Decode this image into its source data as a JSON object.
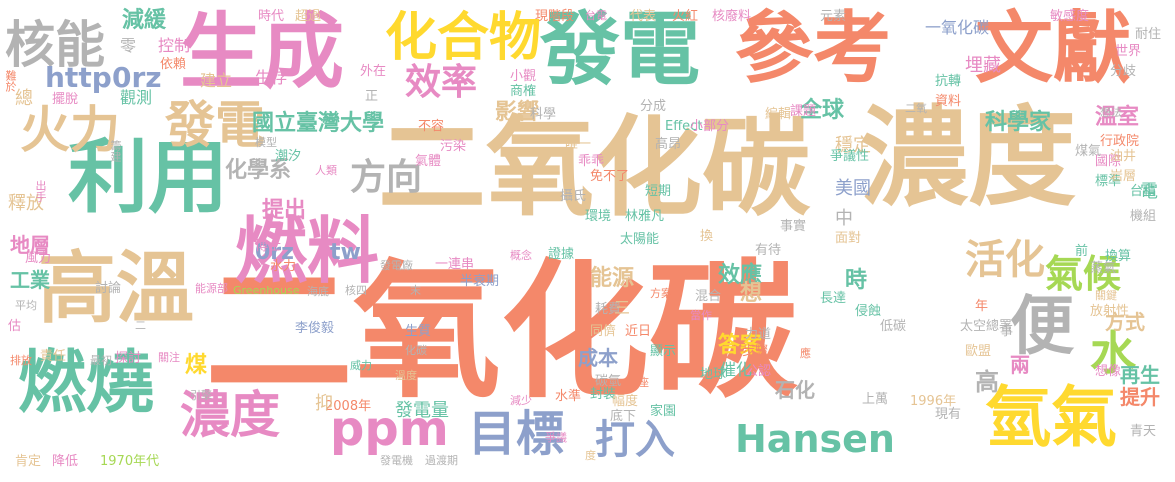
{
  "palette": {
    "orange": "#f4886a",
    "teal": "#66c2a5",
    "purple": "#e78ac3",
    "green": "#a6d854",
    "tan": "#e5c494",
    "yellow": "#ffd92f",
    "gray": "#b3b3b3",
    "blue": "#8da0cb"
  },
  "words": [
    {
      "text": "二氧化碳",
      "color": "orange"
    },
    {
      "text": "二氧化碳",
      "color": "tan"
    },
    {
      "text": "濃度",
      "color": "tan"
    },
    {
      "text": "發電",
      "color": "teal"
    },
    {
      "text": "參考",
      "color": "orange"
    },
    {
      "text": "文獻",
      "color": "orange"
    },
    {
      "text": "生成",
      "color": "purple"
    },
    {
      "text": "利用",
      "color": "teal"
    },
    {
      "text": "高溫",
      "color": "tan"
    },
    {
      "text": "燃料",
      "color": "purple"
    },
    {
      "text": "燃燒",
      "color": "teal"
    },
    {
      "text": "氫氣",
      "color": "yellow"
    },
    {
      "text": "化合物",
      "color": "yellow"
    },
    {
      "text": "核能",
      "color": "gray"
    },
    {
      "text": "火力",
      "color": "tan"
    },
    {
      "text": "發電",
      "color": "tan"
    },
    {
      "text": "效率",
      "color": "purple"
    },
    {
      "text": "方向",
      "color": "gray"
    },
    {
      "text": "便",
      "color": "gray"
    },
    {
      "text": "濃度",
      "color": "purple"
    },
    {
      "text": "ppm",
      "color": "purple"
    },
    {
      "text": "目標",
      "color": "blue"
    },
    {
      "text": "打入",
      "color": "blue"
    },
    {
      "text": "Hansen",
      "color": "teal"
    },
    {
      "text": "氣候",
      "color": "green"
    },
    {
      "text": "活化",
      "color": "tan"
    },
    {
      "text": "水",
      "color": "green"
    },
    {
      "text": "http",
      "color": "blue"
    },
    {
      "text": "0rz",
      "color": "blue"
    },
    {
      "text": "0rz",
      "color": "blue"
    },
    {
      "text": "tw",
      "color": "blue"
    },
    {
      "text": "減緩",
      "color": "teal"
    },
    {
      "text": "國立臺灣大學",
      "color": "teal"
    },
    {
      "text": "化學系",
      "color": "gray"
    },
    {
      "text": "提出",
      "color": "purple"
    },
    {
      "text": "影響",
      "color": "tan"
    },
    {
      "text": "全球",
      "color": "teal"
    },
    {
      "text": "科學家",
      "color": "teal"
    },
    {
      "text": "溫室",
      "color": "purple"
    },
    {
      "text": "效應",
      "color": "teal"
    },
    {
      "text": "能源",
      "color": "tan"
    },
    {
      "text": "答案",
      "color": "yellow"
    },
    {
      "text": "成本",
      "color": "blue"
    },
    {
      "text": "石化",
      "color": "gray"
    },
    {
      "text": "再生",
      "color": "teal"
    },
    {
      "text": "提升",
      "color": "orange"
    },
    {
      "text": "美國",
      "color": "blue"
    },
    {
      "text": "穩定",
      "color": "tan"
    },
    {
      "text": "埋藏",
      "color": "purple"
    },
    {
      "text": "一氧化碳",
      "color": "blue"
    },
    {
      "text": "工業",
      "color": "teal"
    },
    {
      "text": "地層",
      "color": "purple"
    },
    {
      "text": "釋放",
      "color": "tan"
    },
    {
      "text": "總",
      "color": "tan"
    },
    {
      "text": "零",
      "color": "gray"
    },
    {
      "text": "控制",
      "color": "purple"
    },
    {
      "text": "生存",
      "color": "purple"
    },
    {
      "text": "建立",
      "color": "tan"
    },
    {
      "text": "觀測",
      "color": "teal"
    },
    {
      "text": "擺脫",
      "color": "purple"
    },
    {
      "text": "依賴",
      "color": "orange"
    },
    {
      "text": "時代",
      "color": "purple"
    },
    {
      "text": "超過",
      "color": "tan"
    },
    {
      "text": "現階段",
      "color": "orange"
    },
    {
      "text": "台電",
      "color": "purple"
    },
    {
      "text": "代表",
      "color": "tan"
    },
    {
      "text": "火紅",
      "color": "orange"
    },
    {
      "text": "核廢料",
      "color": "purple"
    },
    {
      "text": "元素",
      "color": "gray"
    },
    {
      "text": "敏感度",
      "color": "purple"
    },
    {
      "text": "耐住",
      "color": "gray"
    },
    {
      "text": "世界",
      "color": "purple"
    },
    {
      "text": "分歧",
      "color": "gray"
    },
    {
      "text": "抗轉",
      "color": "teal"
    },
    {
      "text": "資料",
      "color": "orange"
    },
    {
      "text": "想法",
      "color": "gray"
    },
    {
      "text": "行政院",
      "color": "orange"
    },
    {
      "text": "國際",
      "color": "purple"
    },
    {
      "text": "標準",
      "color": "teal"
    },
    {
      "text": "岩層",
      "color": "tan"
    },
    {
      "text": "油井",
      "color": "tan"
    },
    {
      "text": "煤氣",
      "color": "gray"
    },
    {
      "text": "換算",
      "color": "teal"
    },
    {
      "text": "前",
      "color": "teal"
    },
    {
      "text": "蒸氣",
      "color": "gray"
    },
    {
      "text": "關鍵",
      "color": "tan"
    },
    {
      "text": "歐盟",
      "color": "tan"
    },
    {
      "text": "放射性",
      "color": "tan"
    },
    {
      "text": "想像",
      "color": "purple"
    },
    {
      "text": "青天",
      "color": "gray"
    },
    {
      "text": "台積",
      "color": "teal"
    },
    {
      "text": "機組",
      "color": "gray"
    },
    {
      "text": "電",
      "color": "teal"
    },
    {
      "text": "方式",
      "color": "tan"
    },
    {
      "text": "兩",
      "color": "purple"
    },
    {
      "text": "年",
      "color": "orange"
    },
    {
      "text": "太空總署",
      "color": "gray"
    },
    {
      "text": "事",
      "color": "gray"
    },
    {
      "text": "低碳",
      "color": "gray"
    },
    {
      "text": "侵蝕",
      "color": "teal"
    },
    {
      "text": "面對",
      "color": "tan"
    },
    {
      "text": "事實",
      "color": "gray"
    },
    {
      "text": "有待",
      "color": "gray"
    },
    {
      "text": "長達",
      "color": "teal"
    },
    {
      "text": "混合",
      "color": "gray"
    },
    {
      "text": "力道",
      "color": "gray"
    },
    {
      "text": "步驟",
      "color": "orange"
    },
    {
      "text": "公認",
      "color": "purple"
    },
    {
      "text": "上萬",
      "color": "gray"
    },
    {
      "text": "1996年",
      "color": "tan"
    },
    {
      "text": "現有",
      "color": "gray"
    },
    {
      "text": "換",
      "color": "tan"
    },
    {
      "text": "太陽能",
      "color": "teal"
    },
    {
      "text": "林雅凡",
      "color": "teal"
    },
    {
      "text": "短期",
      "color": "teal"
    },
    {
      "text": "攝氏",
      "color": "gray"
    },
    {
      "text": "環境",
      "color": "teal"
    },
    {
      "text": "免不了",
      "color": "orange"
    },
    {
      "text": "乖乖",
      "color": "purple"
    },
    {
      "text": "高昂",
      "color": "gray"
    },
    {
      "text": "唯一",
      "color": "tan"
    },
    {
      "text": "科學",
      "color": "gray"
    },
    {
      "text": "不容",
      "color": "orange"
    },
    {
      "text": "污染",
      "color": "purple"
    },
    {
      "text": "氣體",
      "color": "purple"
    },
    {
      "text": "Effect",
      "color": "teal"
    },
    {
      "text": "分成",
      "color": "gray"
    },
    {
      "text": "小部分",
      "color": "purple"
    },
    {
      "text": "編輯",
      "color": "tan"
    },
    {
      "text": "課題",
      "color": "purple"
    },
    {
      "text": "爭議性",
      "color": "teal"
    },
    {
      "text": "二氧",
      "color": "gray"
    },
    {
      "text": "商榷",
      "color": "teal"
    },
    {
      "text": "小觀",
      "color": "purple"
    },
    {
      "text": "外在",
      "color": "purple"
    },
    {
      "text": "正",
      "color": "gray"
    },
    {
      "text": "潮汐",
      "color": "teal"
    },
    {
      "text": "模型",
      "color": "gray"
    },
    {
      "text": "人類",
      "color": "purple"
    },
    {
      "text": "博士",
      "color": "purple"
    },
    {
      "text": "水力",
      "color": "orange"
    },
    {
      "text": "中",
      "color": "gray"
    },
    {
      "text": "李俊毅",
      "color": "blue"
    },
    {
      "text": "Greenhouse",
      "color": "green"
    },
    {
      "text": "海底",
      "color": "gray"
    },
    {
      "text": "核四",
      "color": "gray"
    },
    {
      "text": "發電廠",
      "color": "gray"
    },
    {
      "text": "一連串",
      "color": "purple"
    },
    {
      "text": "半衰期",
      "color": "blue"
    },
    {
      "text": "概念",
      "color": "purple"
    },
    {
      "text": "證據",
      "color": "teal"
    },
    {
      "text": "末",
      "color": "gray"
    },
    {
      "text": "能源部",
      "color": "purple"
    },
    {
      "text": "風力",
      "color": "purple"
    },
    {
      "text": "討論",
      "color": "gray"
    },
    {
      "text": "平均",
      "color": "gray"
    },
    {
      "text": "估",
      "color": "purple"
    },
    {
      "text": "生質",
      "color": "blue"
    },
    {
      "text": "責任",
      "color": "tan"
    },
    {
      "text": "最初",
      "color": "gray"
    },
    {
      "text": "探討",
      "color": "purple"
    },
    {
      "text": "關注",
      "color": "purple"
    },
    {
      "text": "煤",
      "color": "yellow"
    },
    {
      "text": "化碳",
      "color": "gray"
    },
    {
      "text": "威力",
      "color": "teal"
    },
    {
      "text": "溫度",
      "color": "tan"
    },
    {
      "text": "排放",
      "color": "orange"
    },
    {
      "text": "引擎",
      "color": "gray"
    },
    {
      "text": "2008年",
      "color": "orange"
    },
    {
      "text": "發電量",
      "color": "teal"
    },
    {
      "text": "減少",
      "color": "purple"
    },
    {
      "text": "水準",
      "color": "orange"
    },
    {
      "text": "封裝",
      "color": "teal"
    },
    {
      "text": "幅度",
      "color": "tan"
    },
    {
      "text": "座",
      "color": "orange"
    },
    {
      "text": "地球",
      "color": "teal"
    },
    {
      "text": "顯示",
      "color": "teal"
    },
    {
      "text": "近日",
      "color": "orange"
    },
    {
      "text": "當作",
      "color": "purple"
    },
    {
      "text": "方案",
      "color": "orange"
    },
    {
      "text": "耗費",
      "color": "gray"
    },
    {
      "text": "同儕",
      "color": "tan"
    },
    {
      "text": "三",
      "color": "tan"
    },
    {
      "text": "底下",
      "color": "gray"
    },
    {
      "text": "家園",
      "color": "teal"
    },
    {
      "text": "應",
      "color": "orange"
    },
    {
      "text": "爭議",
      "color": "purple"
    },
    {
      "text": "度",
      "color": "tan"
    },
    {
      "text": "抑",
      "color": "tan"
    },
    {
      "text": "發電機",
      "color": "gray"
    },
    {
      "text": "過渡期",
      "color": "gray"
    },
    {
      "text": "肯定",
      "color": "tan"
    },
    {
      "text": "降低",
      "color": "purple"
    },
    {
      "text": "1970年代",
      "color": "green"
    },
    {
      "text": "難於",
      "color": "orange"
    },
    {
      "text": "籌建",
      "color": "gray"
    },
    {
      "text": "出手",
      "color": "purple"
    },
    {
      "text": "想",
      "color": "tan"
    },
    {
      "text": "催化",
      "color": "teal"
    },
    {
      "text": "時",
      "color": "teal"
    },
    {
      "text": "碳氫",
      "color": "gray"
    },
    {
      "text": "高",
      "color": "gray"
    },
    {
      "text": "二",
      "color": "gray"
    }
  ]
}
